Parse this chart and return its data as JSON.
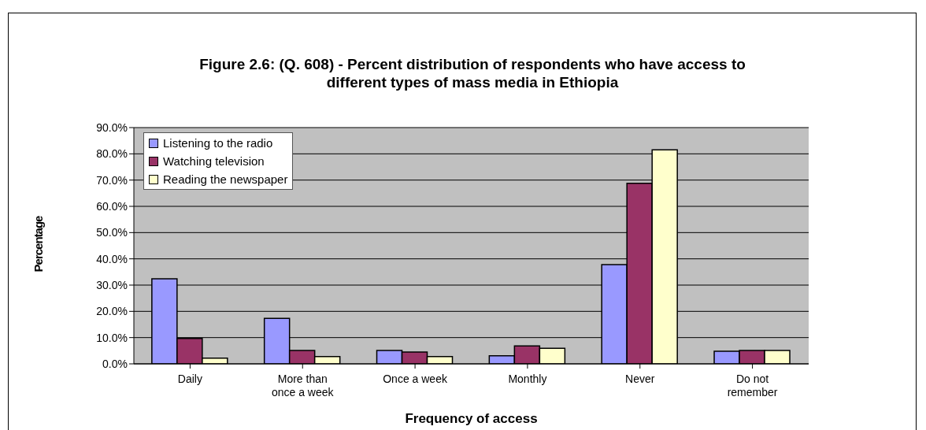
{
  "chart_data": {
    "type": "bar",
    "title": "Figure 2.6: (Q. 608) - Percent distribution of respondents who have access to different types of mass media in Ethiopia",
    "xlabel": "Frequency of access",
    "ylabel": "Percentage",
    "categories": [
      "Daily",
      "More than once a week",
      "Once a week",
      "Monthly",
      "Never",
      "Do not remember"
    ],
    "series": [
      {
        "name": "Listening to the radio",
        "color": "#9999ff",
        "values": [
          32.4,
          17.3,
          5.1,
          3.1,
          37.8,
          4.8
        ]
      },
      {
        "name": "Watching television",
        "color": "#993366",
        "values": [
          9.7,
          5.1,
          4.5,
          6.8,
          68.8,
          5.1
        ]
      },
      {
        "name": "Reading the newspaper",
        "color": "#ffffcc",
        "values": [
          2.2,
          2.8,
          2.8,
          5.9,
          81.5,
          5.1
        ]
      }
    ],
    "ylim": [
      0,
      90
    ],
    "yticks": [
      {
        "value": 0,
        "label": "0.0%"
      },
      {
        "value": 10,
        "label": "10.0%"
      },
      {
        "value": 20,
        "label": "20.0%"
      },
      {
        "value": 30,
        "label": "30.0%"
      },
      {
        "value": 40,
        "label": "40.0%"
      },
      {
        "value": 50,
        "label": "50.0%"
      },
      {
        "value": 60,
        "label": "60.0%"
      },
      {
        "value": 70,
        "label": "70.0%"
      },
      {
        "value": 80,
        "label": "80.0%"
      },
      {
        "value": 90,
        "label": "90.0%"
      }
    ],
    "grid": "y",
    "legend": "top left"
  }
}
